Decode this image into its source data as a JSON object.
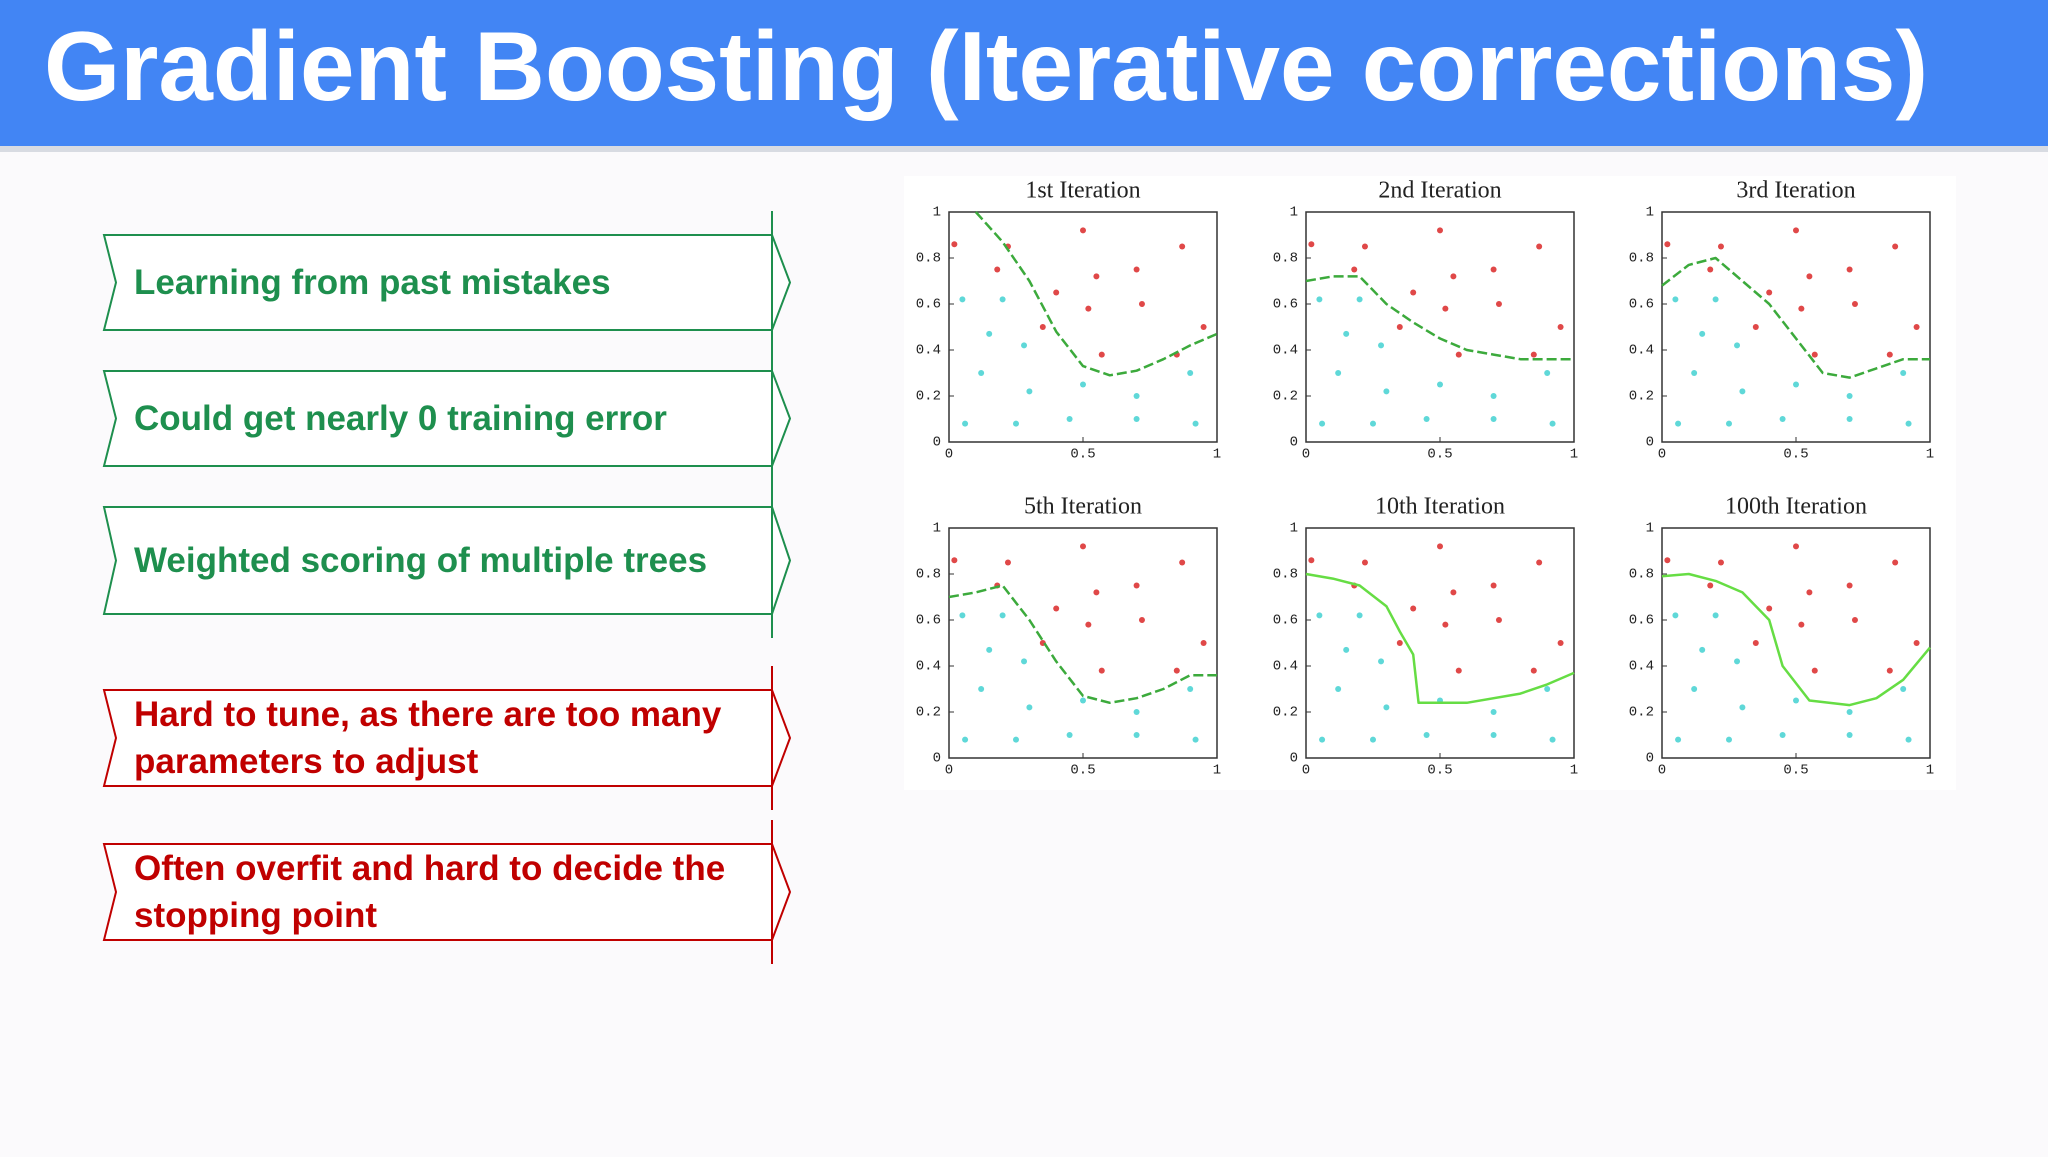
{
  "header": {
    "title": "Gradient Boosting (Iterative corrections)"
  },
  "pros": {
    "color": "#1e8f4e",
    "items": [
      "Learning from past mistakes",
      "Could get nearly 0 training error",
      "Weighted scoring of multiple trees"
    ]
  },
  "cons": {
    "color": "#c00000",
    "items": [
      "Hard to tune, as there are too many parameters to adjust",
      "Often overfit and hard to decide the stopping point"
    ]
  },
  "figure": {
    "xlim": [
      0,
      1
    ],
    "ylim": [
      0,
      1
    ],
    "xticks": [
      0,
      0.5,
      1
    ],
    "yticks": [
      0,
      0.2,
      0.4,
      0.6,
      0.8,
      1
    ],
    "red": {
      "color": "#e04848",
      "x": [
        0.02,
        0.5,
        0.87,
        0.18,
        0.4,
        0.55,
        0.7,
        0.35,
        0.52,
        0.72,
        0.57,
        0.85,
        0.22,
        0.95
      ],
      "y": [
        0.86,
        0.92,
        0.85,
        0.75,
        0.65,
        0.72,
        0.75,
        0.5,
        0.58,
        0.6,
        0.38,
        0.38,
        0.85,
        0.5
      ]
    },
    "cyan": {
      "color": "#5fd8d8",
      "x": [
        0.05,
        0.15,
        0.28,
        0.12,
        0.3,
        0.5,
        0.06,
        0.25,
        0.45,
        0.7,
        0.92,
        0.7,
        0.2,
        0.9
      ],
      "y": [
        0.62,
        0.47,
        0.42,
        0.3,
        0.22,
        0.25,
        0.08,
        0.08,
        0.1,
        0.1,
        0.08,
        0.2,
        0.62,
        0.3
      ]
    },
    "panels": [
      {
        "title": "1st Iteration",
        "curve": {
          "color": "#3caa3c",
          "x": [
            0.1,
            0.2,
            0.3,
            0.4,
            0.5,
            0.6,
            0.7,
            0.8,
            0.9,
            1
          ],
          "y": [
            1,
            0.87,
            0.7,
            0.48,
            0.33,
            0.29,
            0.31,
            0.36,
            0.42,
            0.47
          ]
        }
      },
      {
        "title": "2nd Iteration",
        "curve": {
          "color": "#3caa3c",
          "x": [
            0,
            0.1,
            0.2,
            0.3,
            0.4,
            0.5,
            0.6,
            0.7,
            0.8,
            0.9,
            1
          ],
          "y": [
            0.7,
            0.72,
            0.72,
            0.6,
            0.52,
            0.45,
            0.4,
            0.38,
            0.36,
            0.36,
            0.36
          ]
        }
      },
      {
        "title": "3rd Iteration",
        "curve": {
          "color": "#3caa3c",
          "x": [
            0,
            0.1,
            0.2,
            0.3,
            0.4,
            0.5,
            0.6,
            0.7,
            0.8,
            0.9,
            1
          ],
          "y": [
            0.68,
            0.77,
            0.8,
            0.7,
            0.6,
            0.45,
            0.3,
            0.28,
            0.32,
            0.36,
            0.36
          ]
        }
      },
      {
        "title": "5th Iteration",
        "curve": {
          "color": "#3caa3c",
          "x": [
            0,
            0.1,
            0.2,
            0.3,
            0.4,
            0.5,
            0.6,
            0.7,
            0.8,
            0.9,
            1
          ],
          "y": [
            0.7,
            0.72,
            0.75,
            0.6,
            0.42,
            0.27,
            0.24,
            0.26,
            0.3,
            0.36,
            0.36
          ]
        }
      },
      {
        "title": "10th Iteration",
        "curve": {
          "color": "#66dd44",
          "x": [
            0,
            0.1,
            0.2,
            0.3,
            0.35,
            0.4,
            0.42,
            0.6,
            0.8,
            0.9,
            1
          ],
          "y": [
            0.8,
            0.78,
            0.75,
            0.66,
            0.55,
            0.45,
            0.24,
            0.24,
            0.28,
            0.32,
            0.37
          ]
        }
      },
      {
        "title": "100th Iteration",
        "curve": {
          "color": "#66dd44",
          "x": [
            0,
            0.1,
            0.2,
            0.3,
            0.4,
            0.45,
            0.55,
            0.7,
            0.8,
            0.9,
            1
          ],
          "y": [
            0.79,
            0.8,
            0.77,
            0.72,
            0.6,
            0.4,
            0.25,
            0.23,
            0.26,
            0.34,
            0.48
          ]
        }
      }
    ]
  }
}
